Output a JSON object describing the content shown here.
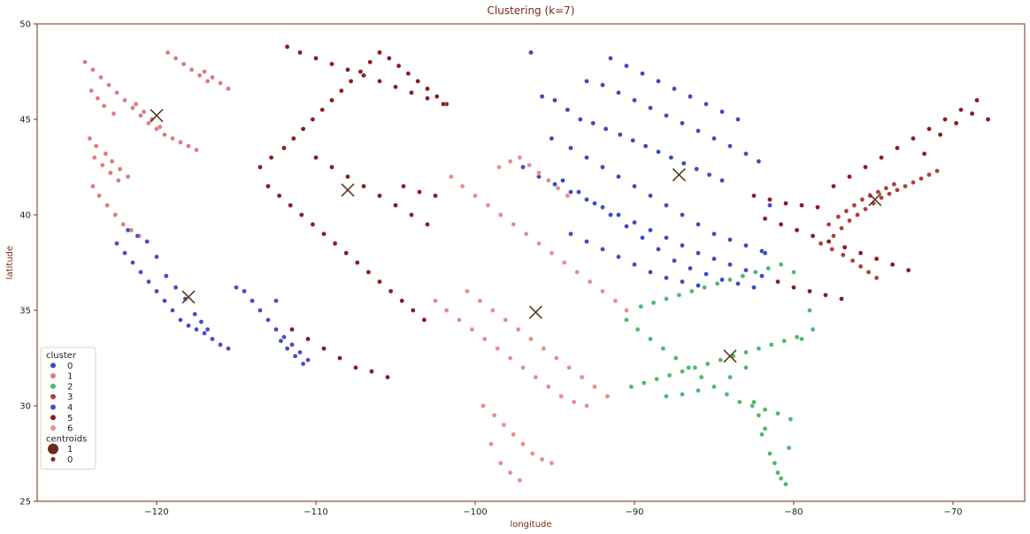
{
  "chart_data": {
    "type": "scatter",
    "title": "Clustering (k=7)",
    "xlabel": "longitude",
    "ylabel": "latitude",
    "xlim": [
      -127.5,
      -65.5
    ],
    "ylim": [
      25,
      50
    ],
    "xticks": [
      -120,
      -110,
      -100,
      -90,
      -80,
      -70
    ],
    "yticks": [
      25,
      30,
      35,
      40,
      45,
      50
    ],
    "grid": false,
    "legend": {
      "placement": "lower-left",
      "cluster_title": "cluster",
      "centroids_title": "centroids",
      "cluster_entries": [
        {
          "label": "0",
          "color": "#3b4cc0"
        },
        {
          "label": "1",
          "color": "#e07b7b"
        },
        {
          "label": "2",
          "color": "#4dbb6a"
        },
        {
          "label": "3",
          "color": "#b0403a"
        },
        {
          "label": "4",
          "color": "#4a4dc4"
        },
        {
          "label": "5",
          "color": "#8b1c1c"
        },
        {
          "label": "6",
          "color": "#e68e8e"
        }
      ],
      "centroid_entries": [
        {
          "label": "1",
          "color": "#6e2a1e",
          "size": 6
        },
        {
          "label": "0",
          "color": "#6e2a1e",
          "size": 2.5
        }
      ]
    },
    "centroid_marker": {
      "symbol": "x",
      "color": "#5a3a1a"
    },
    "centroids": [
      {
        "cluster": "0",
        "x": -87.2,
        "y": 42.1
      },
      {
        "cluster": "1",
        "x": -120.0,
        "y": 45.2
      },
      {
        "cluster": "2",
        "x": -84.0,
        "y": 32.6
      },
      {
        "cluster": "3",
        "x": -74.9,
        "y": 40.8
      },
      {
        "cluster": "4",
        "x": -118.0,
        "y": 35.7
      },
      {
        "cluster": "5",
        "x": -108.0,
        "y": 41.3
      },
      {
        "cluster": "6",
        "x": -96.2,
        "y": 34.9
      }
    ],
    "series": [
      {
        "cluster": "0",
        "color": "#3b4cc0",
        "x": [
          -95.8,
          -95.0,
          -94.2,
          -93.4,
          -92.6,
          -91.8,
          -90.9,
          -90.1,
          -89.3,
          -88.5,
          -87.7,
          -86.9,
          -86.1,
          -85.3,
          -84.5,
          -95.2,
          -94.0,
          -93.0,
          -92.0,
          -91.0,
          -90.0,
          -89.0,
          -88.0,
          -87.0,
          -86.0,
          -85.0,
          -84.0,
          -83.0,
          -82.0,
          -81.5,
          -94.5,
          -93.5,
          -92.5,
          -91.5,
          -90.5,
          -89.5,
          -88.5,
          -87.5,
          -86.5,
          -85.5,
          -84.5,
          -83.5,
          -82.5,
          -81.8,
          -93.0,
          -92.0,
          -91.0,
          -90.0,
          -89.0,
          -88.0,
          -87.0,
          -86.0,
          -85.0,
          -84.0,
          -83.0,
          -82.2,
          -91.5,
          -90.5,
          -89.5,
          -88.5,
          -87.5,
          -86.5,
          -85.5,
          -84.5,
          -83.5,
          -94.0,
          -93.0,
          -92.0,
          -91.0,
          -90.0,
          -89.0,
          -88.0,
          -87.0,
          -86.0,
          -96.5,
          -97.0,
          -96.0,
          -95.0,
          -94.0,
          -93.0,
          -92.0,
          -91.0,
          -90.0,
          -89.0,
          -88.0,
          -87.0,
          -86.0,
          -85.0,
          -84.0,
          -83.0,
          -82.0
        ],
        "y": [
          46.2,
          46.0,
          45.5,
          45.0,
          44.8,
          44.5,
          44.2,
          43.9,
          43.6,
          43.3,
          43.0,
          42.7,
          42.4,
          42.1,
          41.8,
          44.0,
          43.5,
          43.0,
          42.5,
          42.0,
          41.5,
          41.0,
          40.5,
          40.0,
          39.5,
          39.0,
          38.7,
          38.4,
          38.1,
          40.5,
          41.8,
          41.2,
          40.6,
          40.0,
          39.4,
          38.8,
          38.2,
          37.6,
          37.2,
          36.9,
          36.6,
          36.4,
          36.2,
          38.0,
          47.0,
          46.8,
          46.4,
          46.0,
          45.6,
          45.2,
          44.8,
          44.4,
          44.0,
          43.6,
          43.2,
          42.8,
          48.2,
          47.8,
          47.4,
          47.0,
          46.6,
          46.2,
          45.8,
          45.4,
          45.0,
          39.0,
          38.6,
          38.2,
          37.8,
          37.4,
          37.0,
          36.7,
          36.5,
          36.3,
          48.5,
          42.5,
          42.0,
          41.6,
          41.2,
          40.8,
          40.4,
          40.0,
          39.6,
          39.2,
          38.8,
          38.4,
          38.0,
          37.7,
          37.4,
          37.1,
          36.8
        ]
      },
      {
        "cluster": "1",
        "color": "#e07b7b",
        "x": [
          -124.5,
          -124.0,
          -123.5,
          -123.0,
          -122.5,
          -122.0,
          -121.5,
          -121.0,
          -120.5,
          -120.0,
          -119.5,
          -119.0,
          -118.5,
          -118.0,
          -117.5,
          -117.0,
          -116.5,
          -116.0,
          -115.5,
          -124.2,
          -123.8,
          -123.2,
          -122.8,
          -122.3,
          -121.8,
          -121.3,
          -120.8,
          -120.3,
          -119.8,
          -119.3,
          -118.8,
          -118.3,
          -117.8,
          -117.3,
          -116.8,
          -124.0,
          -123.6,
          -123.1,
          -122.6,
          -122.1,
          -121.6,
          -121.1,
          -123.9,
          -123.4,
          -122.9,
          -122.4,
          -124.1,
          -123.7,
          -123.3,
          -122.7
        ],
        "y": [
          48.0,
          47.6,
          47.2,
          46.8,
          46.4,
          46.0,
          45.6,
          45.2,
          44.8,
          44.5,
          44.2,
          44.0,
          43.8,
          43.6,
          43.4,
          47.5,
          47.2,
          46.9,
          46.6,
          44.0,
          43.6,
          43.2,
          42.8,
          42.4,
          42.0,
          45.8,
          45.4,
          45.0,
          44.6,
          48.5,
          48.2,
          47.9,
          47.6,
          47.3,
          47.0,
          41.5,
          41.0,
          40.5,
          40.0,
          39.5,
          39.2,
          38.9,
          43.0,
          42.6,
          42.2,
          41.8,
          46.5,
          46.1,
          45.7,
          45.3
        ]
      },
      {
        "cluster": "2",
        "color": "#4dbb6a",
        "x": [
          -90.5,
          -89.8,
          -89.0,
          -88.2,
          -87.4,
          -86.6,
          -85.8,
          -85.0,
          -84.2,
          -83.4,
          -82.6,
          -81.8,
          -81.0,
          -80.2,
          -79.5,
          -78.8,
          -90.2,
          -89.4,
          -88.6,
          -87.8,
          -87.0,
          -86.2,
          -85.4,
          -84.6,
          -83.8,
          -83.0,
          -82.2,
          -81.4,
          -80.6,
          -79.8,
          -79.0,
          -89.6,
          -88.8,
          -88.0,
          -87.2,
          -86.4,
          -85.6,
          -84.8,
          -84.0,
          -83.2,
          -82.4,
          -81.6,
          -80.8,
          -80.0,
          -88.0,
          -87.0,
          -86.0,
          -85.0,
          -84.0,
          -83.0,
          -82.0,
          -81.5,
          -81.2,
          -81.0,
          -80.8,
          -80.5,
          -80.3,
          -81.8,
          -82.2,
          -82.5
        ],
        "y": [
          34.5,
          34.0,
          33.5,
          33.0,
          32.5,
          32.0,
          31.5,
          31.0,
          30.6,
          30.2,
          30.0,
          29.8,
          29.6,
          29.3,
          33.5,
          34.0,
          31.0,
          31.2,
          31.4,
          31.6,
          31.8,
          32.0,
          32.2,
          32.4,
          32.6,
          32.8,
          33.0,
          33.2,
          33.4,
          33.6,
          35.0,
          35.2,
          35.4,
          35.6,
          35.8,
          36.0,
          36.2,
          36.4,
          36.6,
          36.8,
          37.0,
          37.2,
          37.4,
          37.0,
          30.5,
          30.6,
          30.8,
          31.0,
          31.5,
          32.0,
          28.5,
          27.5,
          27.0,
          26.5,
          26.2,
          25.9,
          27.8,
          28.8,
          29.5,
          30.2
        ]
      },
      {
        "cluster": "3",
        "color": "#b0403a",
        "x": [
          -77.5,
          -77.0,
          -76.5,
          -76.0,
          -75.5,
          -75.0,
          -74.5,
          -74.0,
          -73.5,
          -73.0,
          -72.5,
          -72.0,
          -71.5,
          -71.0,
          -77.8,
          -77.2,
          -76.7,
          -76.2,
          -75.7,
          -75.2,
          -74.7,
          -74.2,
          -73.7,
          -78.3,
          -77.6,
          -76.9,
          -76.3,
          -75.8,
          -75.3,
          -74.8
        ],
        "y": [
          38.9,
          39.3,
          39.7,
          40.0,
          40.3,
          40.6,
          40.9,
          41.1,
          41.3,
          41.5,
          41.7,
          41.9,
          42.1,
          42.3,
          39.5,
          39.9,
          40.2,
          40.5,
          40.8,
          41.0,
          41.2,
          41.4,
          41.6,
          38.5,
          38.2,
          37.9,
          37.6,
          37.3,
          37.0,
          36.7
        ]
      },
      {
        "cluster": "4",
        "color": "#4a4dc4",
        "x": [
          -122.5,
          -122.0,
          -121.5,
          -121.0,
          -120.5,
          -120.0,
          -119.5,
          -119.0,
          -118.5,
          -118.0,
          -117.5,
          -117.0,
          -116.5,
          -116.0,
          -115.5,
          -115.0,
          -114.5,
          -114.0,
          -113.5,
          -113.0,
          -112.5,
          -112.0,
          -111.5,
          -111.0,
          -110.5,
          -121.8,
          -121.2,
          -120.6,
          -120.0,
          -119.4,
          -118.8,
          -118.2,
          -117.6,
          -117.2,
          -116.8,
          -112.2,
          -111.8,
          -111.3,
          -110.8,
          -112.5
        ],
        "y": [
          38.5,
          38.0,
          37.5,
          37.0,
          36.5,
          36.0,
          35.5,
          35.0,
          34.5,
          34.2,
          34.0,
          33.8,
          33.5,
          33.2,
          33.0,
          36.2,
          36.0,
          35.5,
          35.0,
          34.5,
          34.0,
          33.6,
          33.2,
          32.8,
          32.4,
          39.2,
          38.9,
          38.6,
          37.8,
          36.8,
          36.2,
          35.6,
          34.8,
          34.4,
          34.0,
          33.4,
          33.0,
          32.6,
          32.2,
          35.5
        ]
      },
      {
        "cluster": "5",
        "color": "#8b1c1c",
        "x": [
          -113.5,
          -112.8,
          -112.0,
          -111.4,
          -110.8,
          -110.2,
          -109.6,
          -109.0,
          -108.4,
          -107.8,
          -107.2,
          -106.6,
          -106.0,
          -105.4,
          -104.8,
          -104.2,
          -103.6,
          -103.0,
          -102.4,
          -101.8,
          -113.0,
          -112.3,
          -111.6,
          -110.9,
          -110.2,
          -109.5,
          -108.8,
          -108.1,
          -107.4,
          -106.7,
          -106.0,
          -105.3,
          -104.6,
          -103.9,
          -103.2,
          -111.5,
          -110.5,
          -109.5,
          -108.5,
          -107.5,
          -106.5,
          -105.5,
          -104.5,
          -103.5,
          -102.5,
          -110.0,
          -109.0,
          -108.0,
          -107.0,
          -106.0,
          -105.0,
          -104.0,
          -103.0,
          -111.8,
          -111.0,
          -110.0,
          -109.0,
          -108.0,
          -107.0,
          -106.0,
          -105.0,
          -104.0,
          -103.0,
          -102.0,
          -82.5,
          -81.5,
          -80.5,
          -79.5,
          -78.5,
          -77.5,
          -76.5,
          -75.5,
          -74.5,
          -73.5,
          -72.5,
          -71.5,
          -70.5,
          -69.5,
          -68.5,
          -81.8,
          -80.8,
          -79.8,
          -78.8,
          -77.8,
          -76.8,
          -75.8,
          -74.8,
          -73.8,
          -72.8,
          -71.8,
          -70.8,
          -69.8,
          -68.8,
          -67.8,
          -81.0,
          -80.0,
          -79.0,
          -78.0,
          -77.0
        ],
        "y": [
          42.5,
          43.0,
          43.5,
          44.0,
          44.5,
          45.0,
          45.5,
          46.0,
          46.5,
          47.0,
          47.5,
          48.0,
          48.5,
          48.2,
          47.8,
          47.4,
          47.0,
          46.6,
          46.2,
          45.8,
          41.5,
          41.0,
          40.5,
          40.0,
          39.5,
          39.0,
          38.5,
          38.0,
          37.5,
          37.0,
          36.5,
          36.0,
          35.5,
          35.0,
          34.5,
          34.0,
          33.5,
          33.0,
          32.5,
          32.0,
          31.8,
          31.5,
          41.5,
          41.2,
          41.0,
          43.0,
          42.5,
          42.0,
          41.5,
          41.0,
          40.5,
          40.0,
          39.5,
          48.8,
          48.5,
          48.2,
          47.9,
          47.6,
          47.3,
          47.0,
          46.7,
          46.4,
          46.1,
          45.8,
          41.0,
          40.8,
          40.6,
          40.5,
          40.4,
          41.5,
          42.0,
          42.5,
          43.0,
          43.5,
          44.0,
          44.5,
          45.0,
          45.5,
          46.0,
          39.8,
          39.5,
          39.2,
          38.9,
          38.6,
          38.3,
          38.0,
          37.7,
          37.4,
          37.1,
          43.2,
          44.2,
          44.8,
          45.3,
          45.0,
          36.5,
          36.2,
          36.0,
          35.8,
          35.6
        ]
      },
      {
        "cluster": "6",
        "color": "#e68e8e",
        "x": [
          -101.5,
          -100.8,
          -100.0,
          -99.2,
          -98.4,
          -97.6,
          -96.8,
          -96.0,
          -95.2,
          -94.4,
          -93.6,
          -92.8,
          -92.0,
          -91.2,
          -90.5,
          -100.5,
          -99.7,
          -98.9,
          -98.1,
          -97.3,
          -96.5,
          -95.7,
          -94.9,
          -94.1,
          -93.3,
          -92.5,
          -91.7,
          -102.5,
          -101.8,
          -101.0,
          -100.2,
          -99.4,
          -98.6,
          -97.8,
          -97.0,
          -96.2,
          -95.4,
          -94.6,
          -93.8,
          -93.0,
          -99.5,
          -98.8,
          -98.2,
          -97.6,
          -97.0,
          -96.4,
          -95.8,
          -95.2,
          -98.5,
          -97.8,
          -97.2,
          -96.6,
          -96.0,
          -95.4,
          -94.8,
          -94.2,
          -99.0,
          -98.4,
          -97.8,
          -97.2
        ],
        "y": [
          42.0,
          41.5,
          41.0,
          40.5,
          40.0,
          39.5,
          39.0,
          38.5,
          38.0,
          37.5,
          37.0,
          36.5,
          36.0,
          35.5,
          35.0,
          36.0,
          35.5,
          35.0,
          34.5,
          34.0,
          33.5,
          33.0,
          32.5,
          32.0,
          31.5,
          31.0,
          30.5,
          35.5,
          35.0,
          34.5,
          34.0,
          33.5,
          33.0,
          32.5,
          32.0,
          31.5,
          31.0,
          30.5,
          30.2,
          30.0,
          30.0,
          29.5,
          29.0,
          28.5,
          28.0,
          27.5,
          27.2,
          27.0,
          42.5,
          42.8,
          43.0,
          42.6,
          42.2,
          41.8,
          41.4,
          41.0,
          28.0,
          27.0,
          26.5,
          26.1
        ]
      }
    ]
  }
}
